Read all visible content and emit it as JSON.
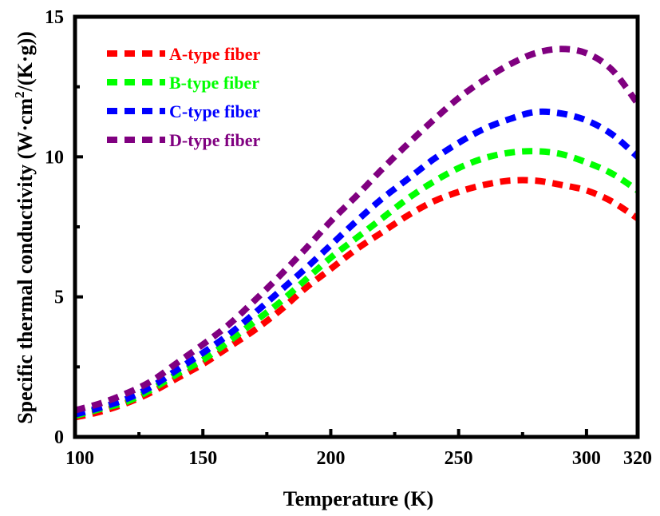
{
  "chart_data": {
    "type": "line",
    "xlabel": "Temperature (K)",
    "ylabel_main": "Specific thermal conductivity (W·cm",
    "ylabel_sup": "2",
    "ylabel_tail": "/(K·g))",
    "xlim": [
      100,
      320
    ],
    "ylim": [
      0,
      15
    ],
    "x_ticks": [
      "100",
      "150",
      "200",
      "250",
      "300",
      "320"
    ],
    "y_ticks": [
      "0",
      "5",
      "10",
      "15"
    ],
    "legend_position": "top-left",
    "grid": false,
    "line_style": "dashed",
    "x": [
      100,
      110,
      120,
      130,
      140,
      150,
      160,
      170,
      180,
      190,
      200,
      210,
      220,
      230,
      240,
      250,
      260,
      270,
      280,
      290,
      300,
      310,
      320
    ],
    "series": [
      {
        "name": "A-type fiber",
        "color": "#ff0000",
        "values": [
          0.7,
          0.9,
          1.2,
          1.6,
          2.1,
          2.6,
          3.2,
          3.8,
          4.5,
          5.3,
          6.0,
          6.7,
          7.3,
          7.9,
          8.4,
          8.75,
          9.0,
          9.15,
          9.15,
          9.0,
          8.8,
          8.4,
          7.8
        ]
      },
      {
        "name": "B-type fiber",
        "color": "#00ff00",
        "values": [
          0.75,
          1.0,
          1.25,
          1.7,
          2.25,
          2.75,
          3.4,
          4.1,
          4.8,
          5.6,
          6.4,
          7.1,
          7.8,
          8.5,
          9.1,
          9.6,
          9.95,
          10.15,
          10.2,
          10.1,
          9.8,
          9.4,
          8.8
        ]
      },
      {
        "name": "C-type fiber",
        "color": "#0000ff",
        "values": [
          0.8,
          1.05,
          1.35,
          1.8,
          2.4,
          3.0,
          3.65,
          4.4,
          5.2,
          6.0,
          6.85,
          7.7,
          8.5,
          9.2,
          9.9,
          10.5,
          11.0,
          11.35,
          11.6,
          11.55,
          11.3,
          10.8,
          10.0
        ]
      },
      {
        "name": "D-type fiber",
        "color": "#800080",
        "values": [
          0.95,
          1.2,
          1.55,
          2.0,
          2.65,
          3.3,
          4.0,
          4.85,
          5.75,
          6.7,
          7.7,
          8.6,
          9.55,
          10.45,
          11.3,
          12.1,
          12.75,
          13.3,
          13.7,
          13.85,
          13.7,
          13.1,
          11.9
        ]
      }
    ]
  }
}
